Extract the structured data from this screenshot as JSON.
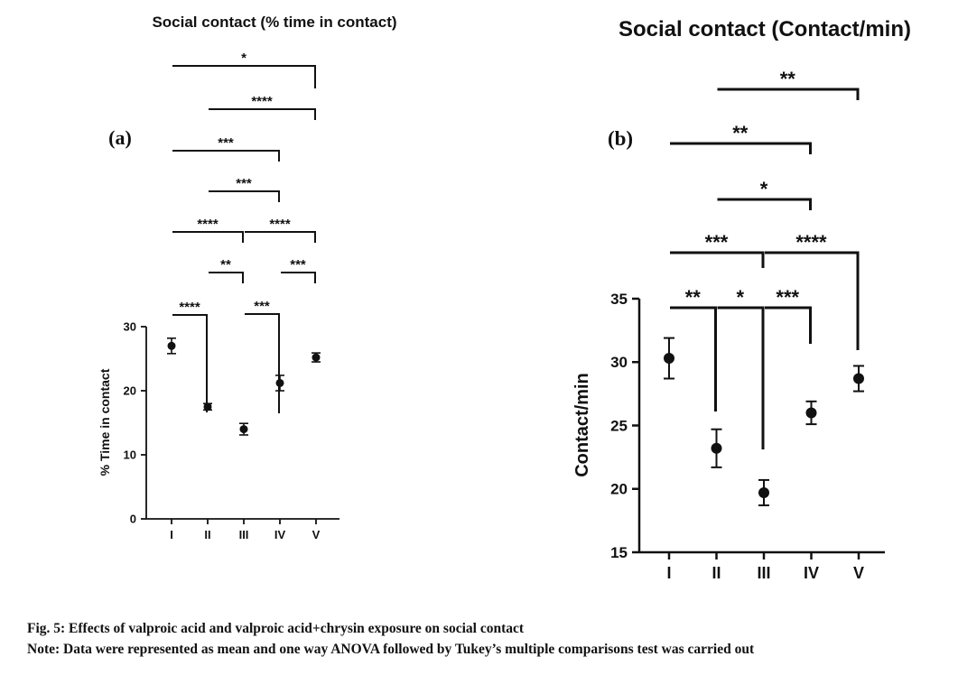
{
  "chart_data": [
    {
      "type": "scatter",
      "panel_label": "(a)",
      "title": "Social contact (% time in contact)",
      "xlabel": "",
      "ylabel": "% Time in contact",
      "categories": [
        "I",
        "II",
        "III",
        "IV",
        "V"
      ],
      "ylim": [
        0,
        30
      ],
      "yticks": [
        0,
        10,
        20,
        30
      ],
      "grid": false,
      "legend": "none",
      "values": [
        27.0,
        17.5,
        14.0,
        21.2,
        25.2
      ],
      "errors": [
        1.2,
        0.5,
        0.9,
        1.2,
        0.7
      ],
      "comparisons": [
        {
          "from": "I",
          "to": "II",
          "label": "****"
        },
        {
          "from": "II",
          "to": "III",
          "label": "**"
        },
        {
          "from": "III",
          "to": "IV",
          "label": "***"
        },
        {
          "from": "IV",
          "to": "V",
          "label": "***"
        },
        {
          "from": "I",
          "to": "III",
          "label": "****"
        },
        {
          "from": "III",
          "to": "V",
          "label": "****"
        },
        {
          "from": "II",
          "to": "IV",
          "label": "***"
        },
        {
          "from": "I",
          "to": "IV",
          "label": "***"
        },
        {
          "from": "II",
          "to": "V",
          "label": "****"
        },
        {
          "from": "I",
          "to": "V",
          "label": "*"
        }
      ]
    },
    {
      "type": "scatter",
      "panel_label": "(b)",
      "title": "Social contact (Contact/min)",
      "xlabel": "",
      "ylabel": "Contact/min",
      "categories": [
        "I",
        "II",
        "III",
        "IV",
        "V"
      ],
      "ylim": [
        15,
        35
      ],
      "yticks": [
        15,
        20,
        25,
        30,
        35
      ],
      "grid": false,
      "legend": "none",
      "values": [
        30.3,
        23.2,
        19.7,
        26.0,
        28.7
      ],
      "errors": [
        1.6,
        1.5,
        1.0,
        0.9,
        1.0
      ],
      "comparisons": [
        {
          "from": "I",
          "to": "II",
          "label": "**"
        },
        {
          "from": "II",
          "to": "III",
          "label": "*"
        },
        {
          "from": "III",
          "to": "IV",
          "label": "***"
        },
        {
          "from": "I",
          "to": "III",
          "label": "***"
        },
        {
          "from": "III",
          "to": "V",
          "label": "****"
        },
        {
          "from": "II",
          "to": "IV",
          "label": "*"
        },
        {
          "from": "I",
          "to": "IV",
          "label": "**"
        },
        {
          "from": "II",
          "to": "V",
          "label": "**"
        }
      ]
    }
  ],
  "caption": {
    "figure": "Fig. 5: Effects of valproic acid and valproic acid+chrysin exposure on social contact",
    "note": "Note: Data were represented as mean and one way ANOVA followed by Tukey’s multiple comparisons test was carried out"
  }
}
